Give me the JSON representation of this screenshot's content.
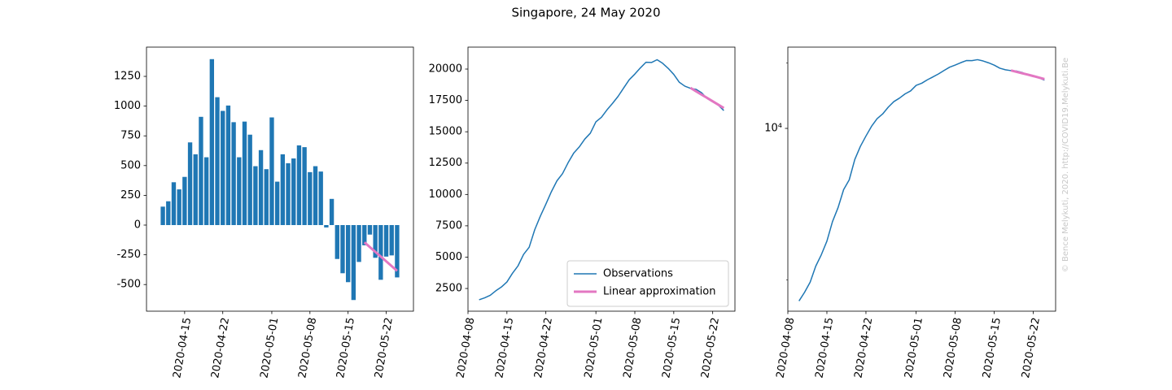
{
  "title": "Singapore, 24 May 2020",
  "watermark": "© Bence Melykuti, 2020. http://COVID19.Melykuti.Be",
  "chart_data": [
    {
      "type": "bar",
      "xlim": [
        "2020-04-08",
        "2020-05-27"
      ],
      "xticks": [
        "2020-04-15",
        "2020-04-22",
        "2020-05-01",
        "2020-05-08",
        "2020-05-15",
        "2020-05-22"
      ],
      "ylim": [
        -724,
        1496
      ],
      "yticks": [
        -500,
        -250,
        0,
        250,
        500,
        750,
        1000,
        1250
      ],
      "series": [
        {
          "type": "bar",
          "color": "#1f77b4",
          "x": [
            "2020-04-11",
            "2020-04-12",
            "2020-04-13",
            "2020-04-14",
            "2020-04-15",
            "2020-04-16",
            "2020-04-17",
            "2020-04-18",
            "2020-04-19",
            "2020-04-20",
            "2020-04-21",
            "2020-04-22",
            "2020-04-23",
            "2020-04-24",
            "2020-04-25",
            "2020-04-26",
            "2020-04-27",
            "2020-04-28",
            "2020-04-29",
            "2020-04-30",
            "2020-05-01",
            "2020-05-02",
            "2020-05-03",
            "2020-05-04",
            "2020-05-05",
            "2020-05-06",
            "2020-05-07",
            "2020-05-08",
            "2020-05-09",
            "2020-05-10",
            "2020-05-11",
            "2020-05-12",
            "2020-05-13",
            "2020-05-14",
            "2020-05-15",
            "2020-05-16",
            "2020-05-17",
            "2020-05-18",
            "2020-05-19",
            "2020-05-20",
            "2020-05-21",
            "2020-05-22",
            "2020-05-23",
            "2020-05-24"
          ],
          "values": [
            155,
            200,
            360,
            300,
            405,
            695,
            595,
            910,
            570,
            1395,
            1075,
            960,
            1005,
            865,
            570,
            870,
            760,
            495,
            630,
            470,
            905,
            365,
            595,
            520,
            560,
            670,
            655,
            445,
            495,
            450,
            -20,
            220,
            -285,
            -405,
            -480,
            -630,
            -310,
            -170,
            -80,
            -275,
            -460,
            -265,
            -255,
            -440
          ]
        },
        {
          "type": "line",
          "color": "#e377c2",
          "linewidth": 3,
          "x": [
            "2020-05-18",
            "2020-05-19",
            "2020-05-20",
            "2020-05-21",
            "2020-05-22",
            "2020-05-23",
            "2020-05-24"
          ],
          "values": [
            -145,
            -185,
            -225,
            -265,
            -305,
            -345,
            -385
          ]
        }
      ]
    },
    {
      "type": "line",
      "xlim": [
        "2020-04-08",
        "2020-05-26"
      ],
      "xticks": [
        "2020-04-08",
        "2020-04-15",
        "2020-04-22",
        "2020-05-01",
        "2020-05-08",
        "2020-05-15",
        "2020-05-22"
      ],
      "ylim": [
        690,
        21750
      ],
      "yticks": [
        2500,
        5000,
        7500,
        10000,
        12500,
        15000,
        17500,
        20000
      ],
      "legend": "lower right",
      "series": [
        {
          "name": "Observations",
          "color": "#1f77b4",
          "linewidth": 1.5,
          "x": [
            "2020-04-10",
            "2020-04-11",
            "2020-04-12",
            "2020-04-13",
            "2020-04-14",
            "2020-04-15",
            "2020-04-16",
            "2020-04-17",
            "2020-04-18",
            "2020-04-19",
            "2020-04-20",
            "2020-04-21",
            "2020-04-22",
            "2020-04-23",
            "2020-04-24",
            "2020-04-25",
            "2020-04-26",
            "2020-04-27",
            "2020-04-28",
            "2020-04-29",
            "2020-04-30",
            "2020-05-01",
            "2020-05-02",
            "2020-05-03",
            "2020-05-04",
            "2020-05-05",
            "2020-05-06",
            "2020-05-07",
            "2020-05-08",
            "2020-05-09",
            "2020-05-10",
            "2020-05-11",
            "2020-05-12",
            "2020-05-13",
            "2020-05-14",
            "2020-05-15",
            "2020-05-16",
            "2020-05-17",
            "2020-05-18",
            "2020-05-19",
            "2020-05-20",
            "2020-05-21",
            "2020-05-22",
            "2020-05-23",
            "2020-05-24"
          ],
          "values": [
            1600,
            1755,
            1955,
            2315,
            2615,
            3020,
            3715,
            4310,
            5220,
            5790,
            7185,
            8260,
            9220,
            10225,
            11090,
            11660,
            12530,
            13290,
            13785,
            14415,
            14885,
            15790,
            16155,
            16750,
            17270,
            17830,
            18500,
            19155,
            19600,
            20095,
            20545,
            20525,
            20745,
            20460,
            20055,
            19575,
            18945,
            18635,
            18465,
            18385,
            18110,
            17650,
            17385,
            17130,
            16690
          ]
        },
        {
          "name": "Linear approximation",
          "color": "#e377c2",
          "linewidth": 3,
          "x": [
            "2020-05-18",
            "2020-05-19",
            "2020-05-20",
            "2020-05-21",
            "2020-05-22",
            "2020-05-23",
            "2020-05-24"
          ],
          "values": [
            18500,
            18230,
            17960,
            17700,
            17430,
            17160,
            16890
          ]
        }
      ]
    },
    {
      "type": "line",
      "yscale": "log",
      "xlim": [
        "2020-04-08",
        "2020-05-26"
      ],
      "xticks": [
        "2020-04-08",
        "2020-04-15",
        "2020-04-22",
        "2020-05-01",
        "2020-05-08",
        "2020-05-15",
        "2020-05-22"
      ],
      "ylim": [
        1436,
        23700
      ],
      "yticks": [
        {
          "value": 10000,
          "label": "10⁴"
        }
      ],
      "yminorticks": [
        2000,
        20000
      ],
      "series": [
        {
          "color": "#1f77b4",
          "linewidth": 1.5,
          "x": [
            "2020-04-10",
            "2020-04-11",
            "2020-04-12",
            "2020-04-13",
            "2020-04-14",
            "2020-04-15",
            "2020-04-16",
            "2020-04-17",
            "2020-04-18",
            "2020-04-19",
            "2020-04-20",
            "2020-04-21",
            "2020-04-22",
            "2020-04-23",
            "2020-04-24",
            "2020-04-25",
            "2020-04-26",
            "2020-04-27",
            "2020-04-28",
            "2020-04-29",
            "2020-04-30",
            "2020-05-01",
            "2020-05-02",
            "2020-05-03",
            "2020-05-04",
            "2020-05-05",
            "2020-05-06",
            "2020-05-07",
            "2020-05-08",
            "2020-05-09",
            "2020-05-10",
            "2020-05-11",
            "2020-05-12",
            "2020-05-13",
            "2020-05-14",
            "2020-05-15",
            "2020-05-16",
            "2020-05-17",
            "2020-05-18",
            "2020-05-19",
            "2020-05-20",
            "2020-05-21",
            "2020-05-22",
            "2020-05-23",
            "2020-05-24"
          ],
          "values": [
            1600,
            1755,
            1955,
            2315,
            2615,
            3020,
            3715,
            4310,
            5220,
            5790,
            7185,
            8260,
            9220,
            10225,
            11090,
            11660,
            12530,
            13290,
            13785,
            14415,
            14885,
            15790,
            16155,
            16750,
            17270,
            17830,
            18500,
            19155,
            19600,
            20095,
            20545,
            20525,
            20745,
            20460,
            20055,
            19575,
            18945,
            18635,
            18465,
            18385,
            18110,
            17650,
            17385,
            17130,
            16690
          ]
        },
        {
          "color": "#e377c2",
          "linewidth": 3,
          "x": [
            "2020-05-18",
            "2020-05-19",
            "2020-05-20",
            "2020-05-21",
            "2020-05-22",
            "2020-05-23",
            "2020-05-24"
          ],
          "values": [
            18500,
            18230,
            17960,
            17700,
            17430,
            17160,
            16890
          ]
        }
      ]
    }
  ]
}
